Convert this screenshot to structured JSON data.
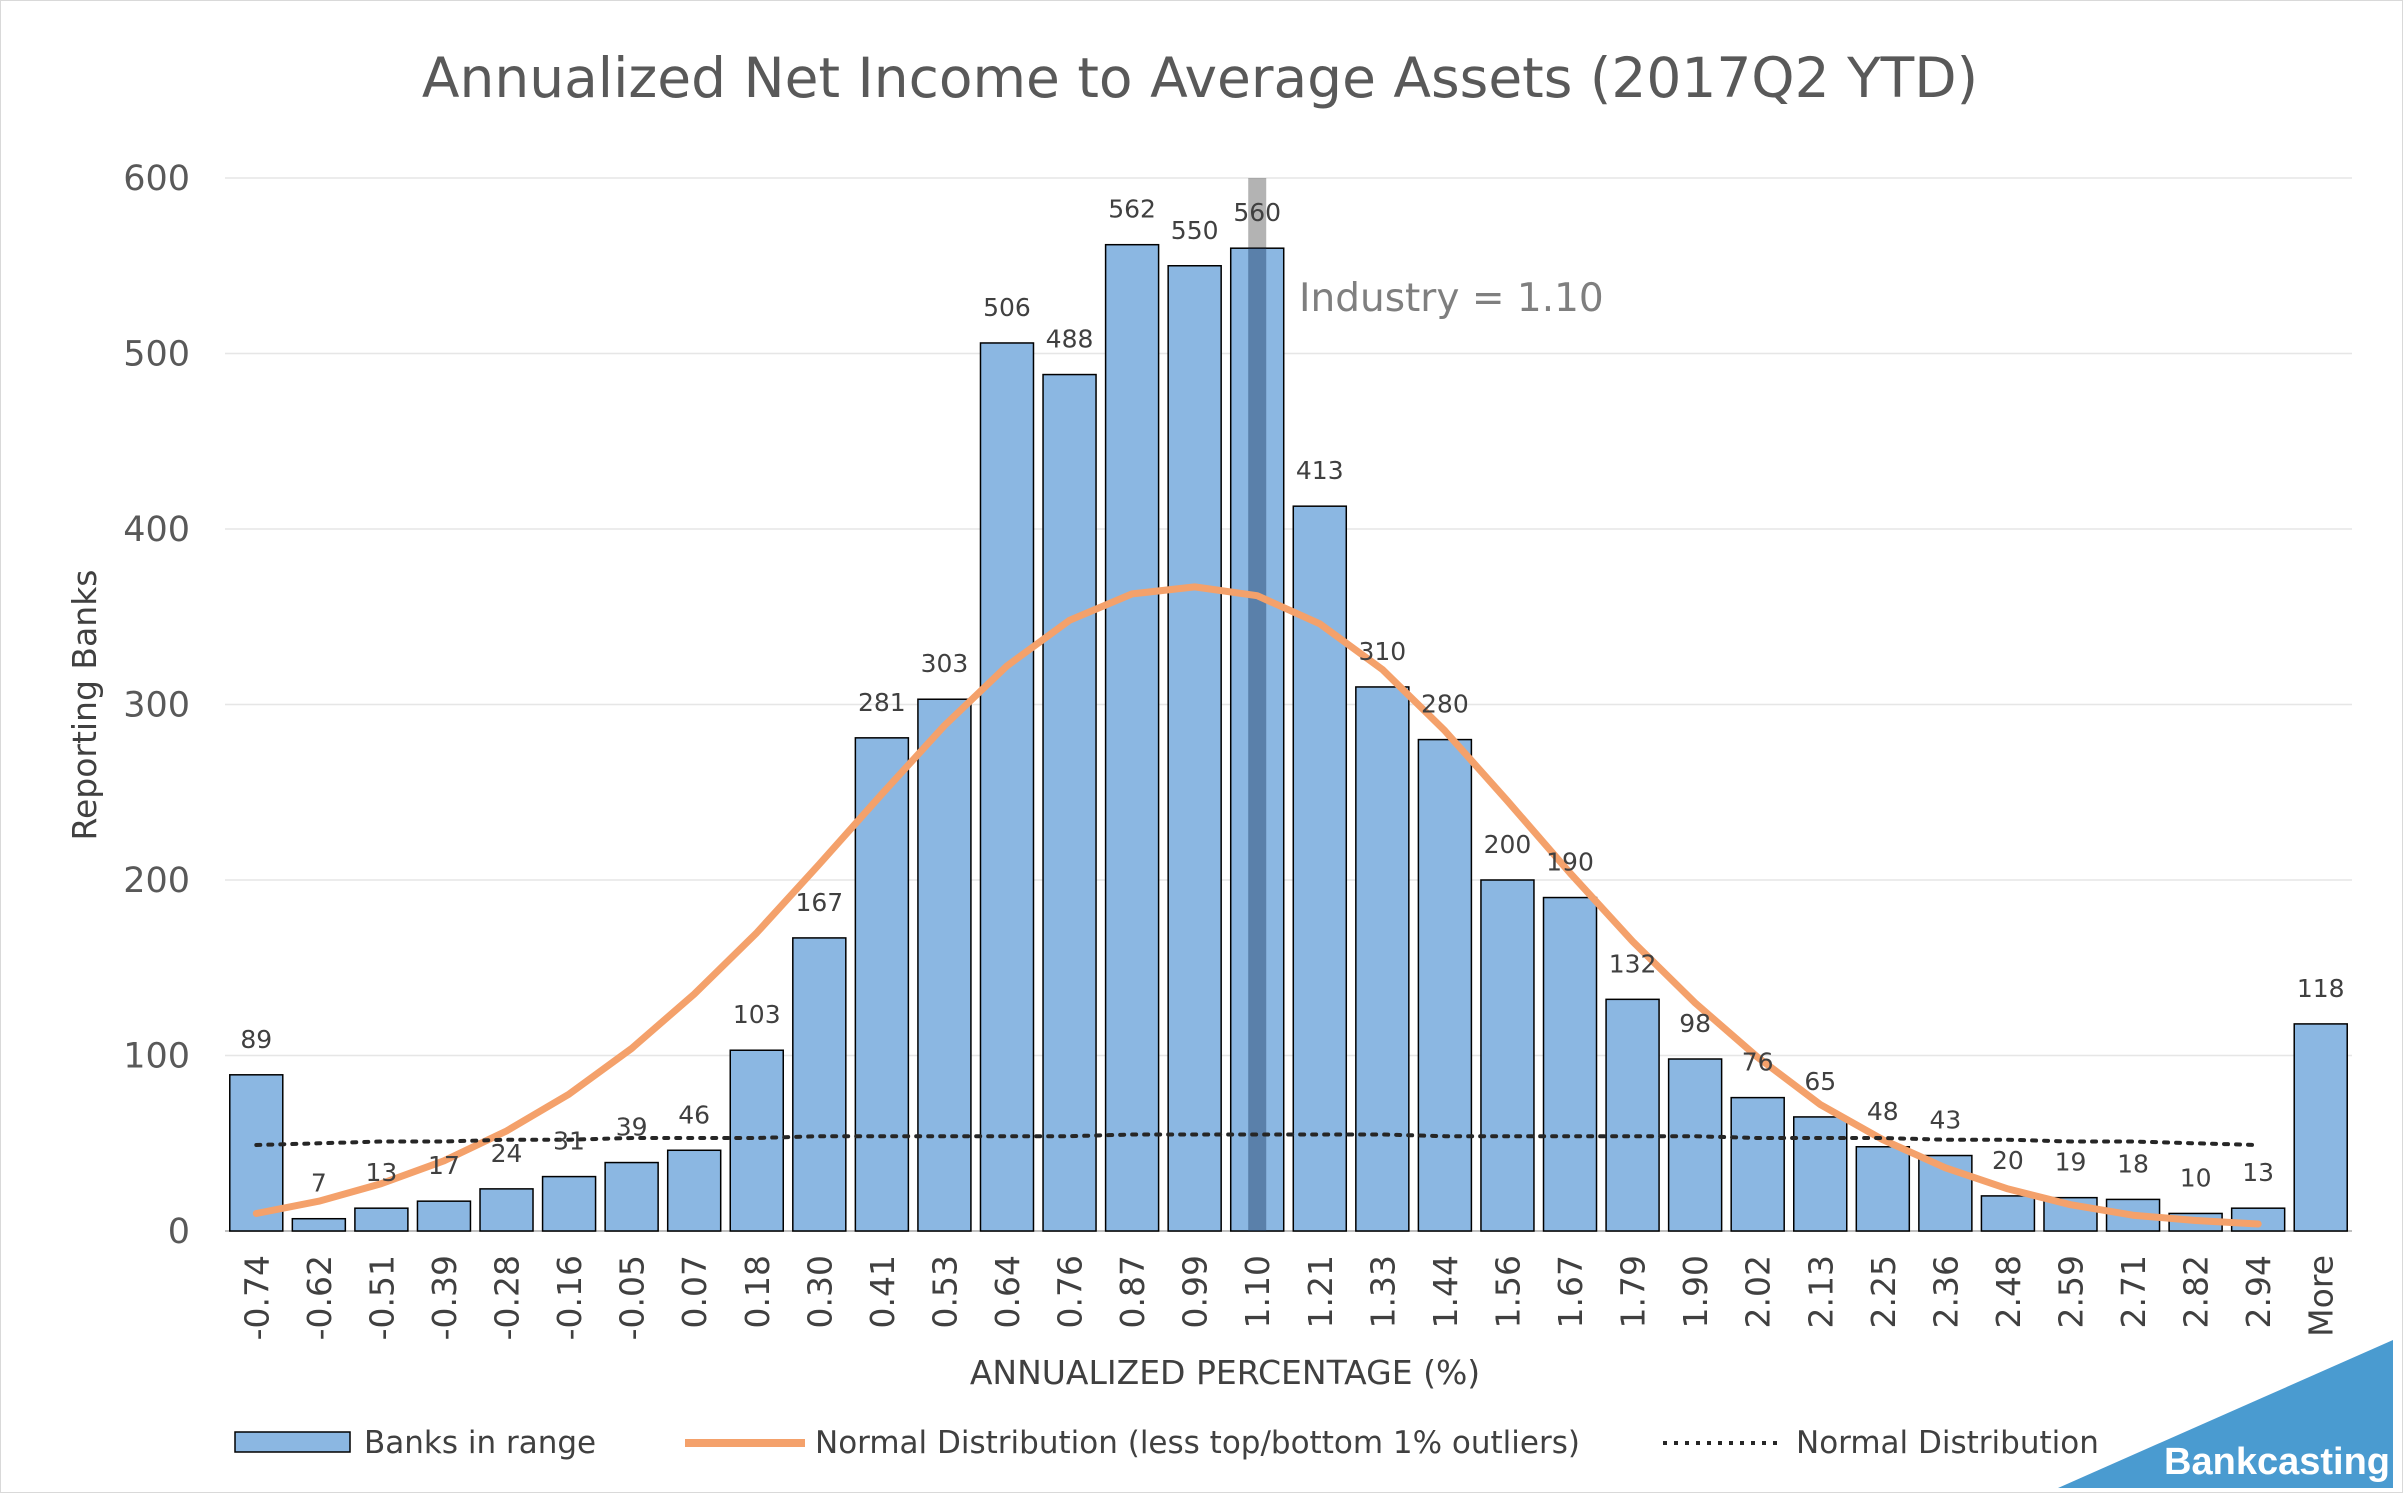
{
  "chart_data": {
    "type": "bar",
    "title": "Annualized Net Income to Average Assets (2017Q2 YTD)",
    "xlabel": "ANNUALIZED PERCENTAGE (%)",
    "ylabel": "Reporting Banks",
    "ylim": [
      0,
      600
    ],
    "yticks": [
      "0",
      "100",
      "200",
      "300",
      "400",
      "500",
      "600"
    ],
    "grid": true,
    "legend_position": "bottom",
    "categories": [
      "-0.74",
      "-0.62",
      "-0.51",
      "-0.39",
      "-0.28",
      "-0.16",
      "-0.05",
      "0.07",
      "0.18",
      "0.30",
      "0.41",
      "0.53",
      "0.64",
      "0.76",
      "0.87",
      "0.99",
      "1.10",
      "1.21",
      "1.33",
      "1.44",
      "1.56",
      "1.67",
      "1.79",
      "1.90",
      "2.02",
      "2.13",
      "2.25",
      "2.36",
      "2.48",
      "2.59",
      "2.71",
      "2.82",
      "2.94",
      "More"
    ],
    "series": [
      {
        "name": "Banks in range",
        "kind": "bar",
        "color": "#8bb7e2",
        "values": [
          89,
          7,
          13,
          17,
          24,
          31,
          39,
          46,
          103,
          167,
          281,
          303,
          506,
          488,
          562,
          550,
          560,
          413,
          310,
          280,
          200,
          190,
          132,
          98,
          76,
          65,
          48,
          43,
          20,
          19,
          18,
          10,
          13,
          118
        ]
      },
      {
        "name": "Normal Distribution (less top/bottom 1% outliers)",
        "kind": "line",
        "color": "#f4a16b",
        "values": [
          10,
          17,
          27,
          40,
          57,
          78,
          104,
          135,
          170,
          209,
          249,
          288,
          322,
          348,
          363,
          367,
          362,
          346,
          320,
          285,
          245,
          204,
          165,
          130,
          99,
          72,
          52,
          36,
          24,
          15,
          9,
          6,
          4,
          null
        ]
      },
      {
        "name": "Normal Distribution",
        "kind": "dotted-line",
        "color": "#262626",
        "values": [
          49,
          50,
          51,
          51,
          52,
          52,
          53,
          53,
          53,
          54,
          54,
          54,
          54,
          54,
          55,
          55,
          55,
          55,
          55,
          54,
          54,
          54,
          54,
          54,
          53,
          53,
          53,
          52,
          52,
          51,
          51,
          50,
          49,
          null
        ]
      }
    ],
    "annotation": {
      "text": "Industry = 1.10",
      "category": "1.10",
      "color": "#7f7f7f"
    }
  },
  "branding": {
    "label": "Bankcasting",
    "color": "#4a9bd0"
  }
}
